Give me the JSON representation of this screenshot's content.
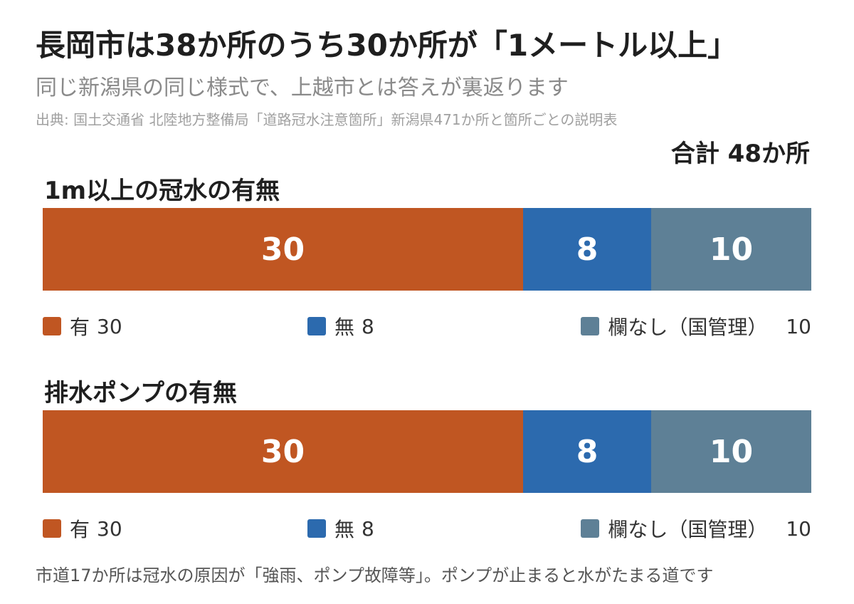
{
  "title": "長岡市は38か所のうち30か所が「1メートル以上」",
  "subtitle": "同じ新潟県の同じ様式で、上越市とは答えが裏返ります",
  "source": "出典: 国土交通省 北陸地方整備局「道路冠水注意箇所」新潟県471か所と箇所ごとの説明表",
  "total_label": "合計 48か所",
  "note": "市道17か所は冠水の原因が「強雨、ポンプ故障等」。ポンプが止まると水がたまる道です",
  "colors": {
    "yes": "#c05622",
    "no": "#2c6aae",
    "none": "#5e8096"
  },
  "chart_data": [
    {
      "type": "bar",
      "orientation": "horizontal-stacked",
      "title": "1m以上の冠水の有無",
      "total": 48,
      "series": [
        {
          "name": "有",
          "value": 30,
          "label": "30",
          "legend_value": "30",
          "color_key": "yes"
        },
        {
          "name": "無",
          "value": 8,
          "label": "8",
          "legend_value": "8",
          "color_key": "no"
        },
        {
          "name": "欄なし（国管理）",
          "value": 10,
          "label": "10",
          "legend_value": "10",
          "color_key": "none"
        }
      ]
    },
    {
      "type": "bar",
      "orientation": "horizontal-stacked",
      "title": "排水ポンプの有無",
      "total": 48,
      "series": [
        {
          "name": "有",
          "value": 30,
          "label": "30",
          "legend_value": "30",
          "color_key": "yes"
        },
        {
          "name": "無",
          "value": 8,
          "label": "8",
          "legend_value": "8",
          "color_key": "no"
        },
        {
          "name": "欄なし（国管理）",
          "value": 10,
          "label": "10",
          "legend_value": "10",
          "color_key": "none"
        }
      ]
    }
  ]
}
